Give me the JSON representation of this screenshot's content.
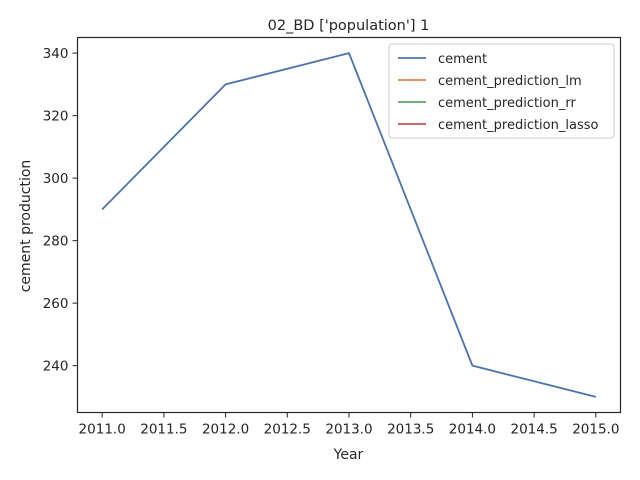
{
  "chart_data": {
    "type": "line",
    "title": "02_BD ['population'] 1",
    "xlabel": "Year",
    "ylabel": "cement production",
    "xlim": [
      2010.8,
      2015.2
    ],
    "ylim": [
      225,
      345
    ],
    "xticks": [
      2011.0,
      2011.5,
      2012.0,
      2012.5,
      2013.0,
      2013.5,
      2014.0,
      2014.5,
      2015.0
    ],
    "xtick_labels": [
      "2011.0",
      "2011.5",
      "2012.0",
      "2012.5",
      "2013.0",
      "2013.5",
      "2014.0",
      "2014.5",
      "2015.0"
    ],
    "yticks": [
      240,
      260,
      280,
      300,
      320,
      340
    ],
    "ytick_labels": [
      "240",
      "260",
      "280",
      "300",
      "320",
      "340"
    ],
    "grid": false,
    "legend_position": "top-right",
    "series": [
      {
        "name": "cement",
        "color": "#4c72b0",
        "x": [
          2011,
          2012,
          2013,
          2014,
          2015
        ],
        "y": [
          290,
          330,
          340,
          240,
          230
        ]
      },
      {
        "name": "cement_prediction_lm",
        "color": "#dd8452",
        "x": [],
        "y": []
      },
      {
        "name": "cement_prediction_rr",
        "color": "#55a868",
        "x": [],
        "y": []
      },
      {
        "name": "cement_prediction_lasso",
        "color": "#c44e52",
        "x": [],
        "y": []
      }
    ]
  }
}
